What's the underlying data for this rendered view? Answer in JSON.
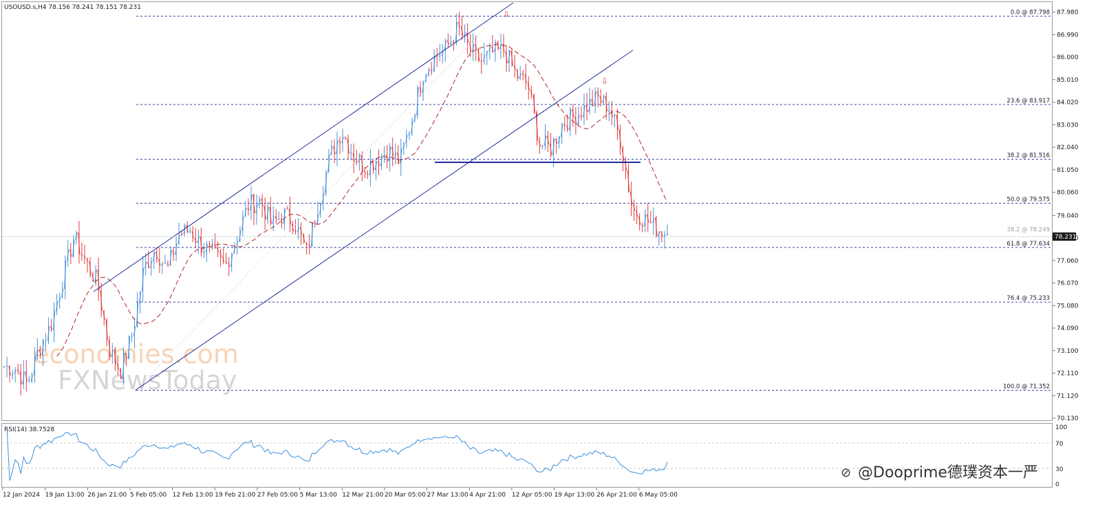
{
  "header": {
    "symbol_line": "USOUSD.s,H4  78.156 78.241 78.151 78.231"
  },
  "rsi": {
    "label": "RSI(14) 38.7528",
    "value": 38.7528,
    "levels": [
      70,
      30
    ],
    "axis_labels": [
      "100",
      "70",
      "30",
      "0"
    ]
  },
  "price_axis": {
    "ticks": [
      "87.980",
      "86.990",
      "86.000",
      "85.010",
      "84.020",
      "83.030",
      "82.040",
      "81.050",
      "80.060",
      "79.040",
      "78.050",
      "77.060",
      "76.070",
      "75.080",
      "74.090",
      "73.100",
      "72.110",
      "71.120",
      "70.130"
    ],
    "current_price": "78.231"
  },
  "fibonacci": [
    {
      "label": "0.0 @ 87.798",
      "price": 87.798
    },
    {
      "label": "23.6 @ 83.917",
      "price": 83.917
    },
    {
      "label": "38.2 @ 81.516",
      "price": 81.516
    },
    {
      "label": "50.0 @ 79.575",
      "price": 79.575
    },
    {
      "label": "61.8 @ 77.634",
      "price": 77.634
    },
    {
      "label": "76.4 @ 75.233",
      "price": 75.233
    },
    {
      "label": "100.0 @ 71.352",
      "price": 71.352
    }
  ],
  "faint_fib": {
    "label": "38.2 @ 78.249",
    "price": 78.249
  },
  "time_axis": [
    "12 Jan 2024",
    "19 Jan 13:00",
    "26 Jan 21:00",
    "5 Feb 05:00",
    "12 Feb 13:00",
    "19 Feb 21:00",
    "27 Feb 05:00",
    "5 Mar 13:00",
    "12 Mar 21:00",
    "20 Mar 05:00",
    "27 Mar 13:00",
    "4 Apr 21:00",
    "12 Apr 05:00",
    "19 Apr 13:00",
    "26 Apr 21:00",
    "6 May 05:00"
  ],
  "watermark": {
    "line1": "economies.com",
    "line2": "FXNewsToday"
  },
  "credit": "@Dooprime德璞资本一严",
  "colors": {
    "bull": "#4a90d9",
    "bear": "#e03c3c",
    "ma": "#b22222",
    "channel": "#1f2a9c",
    "fib": "#1f2a9c",
    "rsi": "#3a8fde"
  },
  "chart_data": {
    "type": "candlestick",
    "symbol": "USOUSD.s",
    "timeframe": "H4",
    "ohlc_last": {
      "open": 78.156,
      "high": 78.241,
      "low": 78.151,
      "close": 78.231
    },
    "ylim": [
      70.13,
      88.3
    ],
    "anchors": [
      {
        "date": "12 Jan 2024",
        "price": 72.4
      },
      {
        "date": "15 Jan 2024",
        "price": 72.3
      },
      {
        "date": "17 Jan 2024",
        "price": 71.6
      },
      {
        "date": "19 Jan 13:00",
        "price": 73.2
      },
      {
        "date": "22 Jan 2024",
        "price": 74.2
      },
      {
        "date": "24 Jan 2024",
        "price": 76.2
      },
      {
        "date": "26 Jan 2024",
        "price": 78.1
      },
      {
        "date": "29 Jan 2024",
        "price": 77.0
      },
      {
        "date": "31 Jan 2024",
        "price": 76.1
      },
      {
        "date": "2 Feb 2024",
        "price": 73.2
      },
      {
        "date": "5 Feb 05:00",
        "price": 72.2
      },
      {
        "date": "7 Feb 2024",
        "price": 73.8
      },
      {
        "date": "9 Feb 2024",
        "price": 76.7
      },
      {
        "date": "12 Feb 13:00",
        "price": 77.6
      },
      {
        "date": "15 Feb 2024",
        "price": 76.6
      },
      {
        "date": "17 Feb 2024",
        "price": 78.2
      },
      {
        "date": "19 Feb 21:00",
        "price": 78.4
      },
      {
        "date": "22 Feb 2024",
        "price": 77.7
      },
      {
        "date": "24 Feb 2024",
        "price": 77.3
      },
      {
        "date": "26 Feb 2024",
        "price": 76.8
      },
      {
        "date": "27 Feb 05:00",
        "price": 78.1
      },
      {
        "date": "1 Mar 2024",
        "price": 79.5
      },
      {
        "date": "4 Mar 2024",
        "price": 79.7
      },
      {
        "date": "5 Mar 13:00",
        "price": 78.6
      },
      {
        "date": "7 Mar 2024",
        "price": 79.1
      },
      {
        "date": "9 Mar 2024",
        "price": 78.7
      },
      {
        "date": "11 Mar 2024",
        "price": 77.4
      },
      {
        "date": "12 Mar 21:00",
        "price": 79.6
      },
      {
        "date": "14 Mar 2024",
        "price": 81.6
      },
      {
        "date": "17 Mar 2024",
        "price": 82.8
      },
      {
        "date": "18 Mar 2024",
        "price": 81.7
      },
      {
        "date": "20 Mar 05:00",
        "price": 81.2
      },
      {
        "date": "22 Mar 2024",
        "price": 81.5
      },
      {
        "date": "25 Mar 2024",
        "price": 81.9
      },
      {
        "date": "26 Mar 2024",
        "price": 81.4
      },
      {
        "date": "27 Mar 13:00",
        "price": 83.2
      },
      {
        "date": "29 Mar 2024",
        "price": 85.3
      },
      {
        "date": "1 Apr 2024",
        "price": 86.0
      },
      {
        "date": "3 Apr 2024",
        "price": 86.4
      },
      {
        "date": "4 Apr 21:00",
        "price": 87.3
      },
      {
        "date": "6 Apr 2024",
        "price": 86.3
      },
      {
        "date": "8 Apr 2024",
        "price": 85.8
      },
      {
        "date": "10 Apr 2024",
        "price": 86.2
      },
      {
        "date": "12 Apr 05:00",
        "price": 86.3
      },
      {
        "date": "14 Apr 2024",
        "price": 85.2
      },
      {
        "date": "16 Apr 2024",
        "price": 84.8
      },
      {
        "date": "18 Apr 2024",
        "price": 82.2
      },
      {
        "date": "19 Apr 13:00",
        "price": 82.0
      },
      {
        "date": "21 Apr 2024",
        "price": 83.1
      },
      {
        "date": "23 Apr 2024",
        "price": 83.4
      },
      {
        "date": "24 Apr 2024",
        "price": 83.8
      },
      {
        "date": "25 Apr 2024",
        "price": 84.2
      },
      {
        "date": "26 Apr 21:00",
        "price": 83.8
      },
      {
        "date": "29 Apr 2024",
        "price": 82.3
      },
      {
        "date": "1 May 2024",
        "price": 79.3
      },
      {
        "date": "3 May 2024",
        "price": 78.9
      },
      {
        "date": "6 May 05:00",
        "price": 78.5
      },
      {
        "date": "7 May 2024",
        "price": 78.23
      }
    ]
  }
}
